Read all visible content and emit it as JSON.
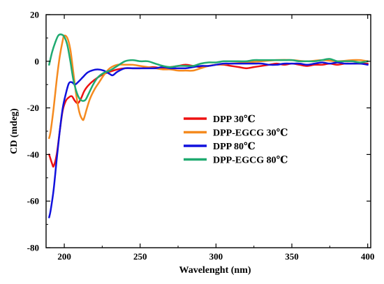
{
  "chart_data": {
    "type": "line",
    "xlabel": "Wavelenght (nm)",
    "ylabel": "CD (mdeg)",
    "xlim": [
      188,
      402
    ],
    "ylim": [
      -80,
      20
    ],
    "xticks": [
      200,
      250,
      300,
      350,
      400
    ],
    "yticks": [
      20,
      0,
      -20,
      -40,
      -60,
      -80
    ],
    "grid": false,
    "legend_position": "center-right",
    "series": [
      {
        "name": "DPP 30℃",
        "color": "#ee1111",
        "points": [
          [
            190,
            -40
          ],
          [
            192,
            -44
          ],
          [
            193,
            -45
          ],
          [
            195,
            -40
          ],
          [
            197,
            -30
          ],
          [
            199,
            -21
          ],
          [
            201,
            -17
          ],
          [
            203,
            -15.5
          ],
          [
            205,
            -15
          ],
          [
            207,
            -17
          ],
          [
            209,
            -18
          ],
          [
            211,
            -16
          ],
          [
            213,
            -13
          ],
          [
            215,
            -11
          ],
          [
            218,
            -9
          ],
          [
            222,
            -7
          ],
          [
            226,
            -5.5
          ],
          [
            230,
            -4.5
          ],
          [
            235,
            -3.5
          ],
          [
            240,
            -3
          ],
          [
            250,
            -3
          ],
          [
            258,
            -2.5
          ],
          [
            265,
            -3
          ],
          [
            270,
            -2.5
          ],
          [
            275,
            -2
          ],
          [
            280,
            -1.5
          ],
          [
            285,
            -2
          ],
          [
            290,
            -2.5
          ],
          [
            295,
            -2
          ],
          [
            300,
            -1.5
          ],
          [
            305,
            -1.5
          ],
          [
            310,
            -2
          ],
          [
            315,
            -2.5
          ],
          [
            320,
            -3
          ],
          [
            325,
            -2.5
          ],
          [
            330,
            -2
          ],
          [
            335,
            -1.5
          ],
          [
            340,
            -1
          ],
          [
            345,
            -1.5
          ],
          [
            350,
            -1
          ],
          [
            355,
            -1.5
          ],
          [
            360,
            -2
          ],
          [
            365,
            -1.5
          ],
          [
            370,
            -1.5
          ],
          [
            375,
            -1
          ],
          [
            380,
            -1.5
          ],
          [
            385,
            -1
          ],
          [
            390,
            -1
          ],
          [
            395,
            -1
          ],
          [
            400,
            -1
          ]
        ]
      },
      {
        "name": "DPP-EGCG 30℃",
        "color": "#f58a1f",
        "points": [
          [
            190,
            -33
          ],
          [
            191,
            -30
          ],
          [
            193,
            -20
          ],
          [
            195,
            -8
          ],
          [
            197,
            2
          ],
          [
            199,
            9
          ],
          [
            200,
            11
          ],
          [
            202,
            10
          ],
          [
            204,
            5
          ],
          [
            206,
            -5
          ],
          [
            208,
            -15
          ],
          [
            210,
            -22
          ],
          [
            212,
            -25
          ],
          [
            213,
            -24.5
          ],
          [
            215,
            -20
          ],
          [
            217,
            -16
          ],
          [
            220,
            -12
          ],
          [
            223,
            -9
          ],
          [
            226,
            -6
          ],
          [
            230,
            -3
          ],
          [
            235,
            -1.5
          ],
          [
            240,
            -1.5
          ],
          [
            245,
            -1.5
          ],
          [
            250,
            -2
          ],
          [
            255,
            -2.5
          ],
          [
            260,
            -3
          ],
          [
            265,
            -3.5
          ],
          [
            270,
            -3.5
          ],
          [
            275,
            -4
          ],
          [
            280,
            -4
          ],
          [
            285,
            -4
          ],
          [
            290,
            -3
          ],
          [
            295,
            -2
          ],
          [
            300,
            -1.5
          ],
          [
            310,
            -1
          ],
          [
            320,
            -0.5
          ],
          [
            330,
            0
          ],
          [
            340,
            0.5
          ],
          [
            350,
            0.5
          ],
          [
            360,
            0
          ],
          [
            370,
            0.5
          ],
          [
            380,
            0
          ],
          [
            390,
            0.5
          ],
          [
            395,
            0.5
          ],
          [
            400,
            0
          ]
        ]
      },
      {
        "name": "DPP 80℃",
        "color": "#1111dd",
        "points": [
          [
            190,
            -67
          ],
          [
            191,
            -64
          ],
          [
            193,
            -55
          ],
          [
            195,
            -42
          ],
          [
            197,
            -30
          ],
          [
            199,
            -20
          ],
          [
            201,
            -14
          ],
          [
            203,
            -9.5
          ],
          [
            205,
            -9
          ],
          [
            207,
            -10
          ],
          [
            209,
            -9
          ],
          [
            212,
            -7
          ],
          [
            215,
            -5
          ],
          [
            218,
            -4
          ],
          [
            222,
            -3.5
          ],
          [
            226,
            -4
          ],
          [
            230,
            -5.5
          ],
          [
            232,
            -6
          ],
          [
            235,
            -4.5
          ],
          [
            240,
            -3
          ],
          [
            245,
            -3
          ],
          [
            250,
            -3
          ],
          [
            255,
            -3
          ],
          [
            260,
            -3
          ],
          [
            265,
            -2.5
          ],
          [
            270,
            -3
          ],
          [
            275,
            -3
          ],
          [
            280,
            -3
          ],
          [
            285,
            -2.5
          ],
          [
            290,
            -2
          ],
          [
            295,
            -2
          ],
          [
            300,
            -1.5
          ],
          [
            305,
            -1
          ],
          [
            310,
            -1
          ],
          [
            315,
            -1
          ],
          [
            320,
            -1
          ],
          [
            325,
            -1
          ],
          [
            330,
            -1
          ],
          [
            335,
            -1.5
          ],
          [
            340,
            -1.5
          ],
          [
            345,
            -1
          ],
          [
            350,
            -1
          ],
          [
            355,
            -1
          ],
          [
            360,
            -1.5
          ],
          [
            365,
            -1
          ],
          [
            370,
            -0.5
          ],
          [
            375,
            -1
          ],
          [
            380,
            -0.5
          ],
          [
            385,
            -1
          ],
          [
            390,
            -1
          ],
          [
            395,
            -1
          ],
          [
            400,
            -1.5
          ]
        ]
      },
      {
        "name": "DPP-EGCG 80℃",
        "color": "#1faa70",
        "points": [
          [
            190,
            -1.5
          ],
          [
            192,
            4
          ],
          [
            194,
            8
          ],
          [
            196,
            11
          ],
          [
            198,
            11.5
          ],
          [
            200,
            10.5
          ],
          [
            202,
            7
          ],
          [
            204,
            0
          ],
          [
            206,
            -8
          ],
          [
            208,
            -13
          ],
          [
            210,
            -16
          ],
          [
            212,
            -17
          ],
          [
            214,
            -16.5
          ],
          [
            216,
            -14
          ],
          [
            219,
            -10
          ],
          [
            222,
            -7
          ],
          [
            226,
            -5
          ],
          [
            230,
            -4
          ],
          [
            235,
            -2
          ],
          [
            240,
            0
          ],
          [
            245,
            0.5
          ],
          [
            250,
            0
          ],
          [
            255,
            0
          ],
          [
            260,
            -1
          ],
          [
            265,
            -2
          ],
          [
            270,
            -2.5
          ],
          [
            275,
            -2
          ],
          [
            280,
            -2
          ],
          [
            285,
            -2
          ],
          [
            290,
            -1
          ],
          [
            295,
            -0.5
          ],
          [
            300,
            -0.5
          ],
          [
            305,
            0
          ],
          [
            310,
            0
          ],
          [
            315,
            0
          ],
          [
            320,
            0
          ],
          [
            325,
            0.5
          ],
          [
            330,
            0.5
          ],
          [
            335,
            0.5
          ],
          [
            340,
            0.5
          ],
          [
            345,
            0.5
          ],
          [
            350,
            0.5
          ],
          [
            355,
            0
          ],
          [
            360,
            0
          ],
          [
            365,
            0
          ],
          [
            370,
            0.5
          ],
          [
            375,
            1
          ],
          [
            380,
            0
          ],
          [
            385,
            0
          ],
          [
            390,
            0
          ],
          [
            395,
            -0.5
          ],
          [
            400,
            0
          ]
        ]
      }
    ]
  }
}
